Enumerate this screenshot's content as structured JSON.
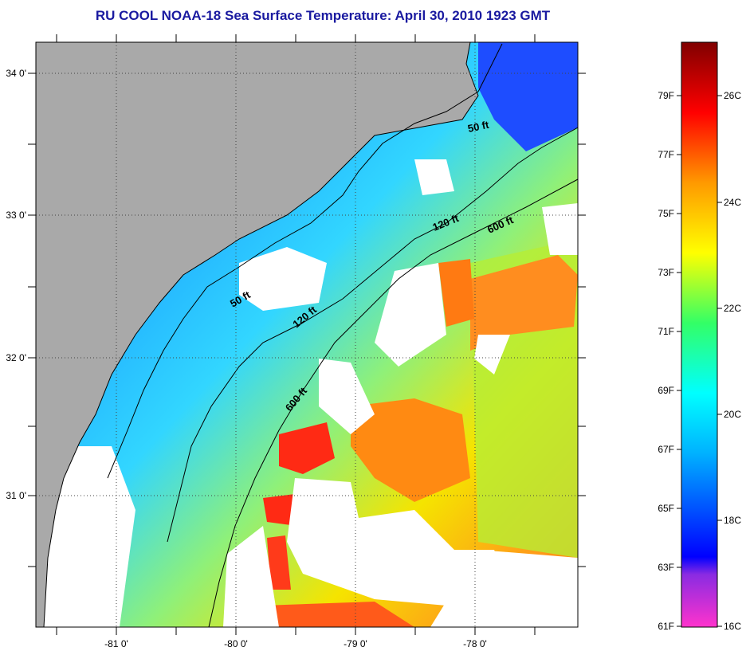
{
  "title": "RU COOL  NOAA-18  Sea Surface Temperature:  April 30, 2010 1923 GMT",
  "axes": {
    "lon_labels": [
      "-81 0'",
      "-80 0'",
      "-79 0'",
      "-78 0'"
    ],
    "lat_labels": [
      "34 0'",
      "33 0'",
      "32 0'",
      "31 0'"
    ]
  },
  "contours": {
    "label_50_north": "50 ft",
    "label_50_south": "50 ft",
    "label_120_north": "120 ft",
    "label_120_south": "120 ft",
    "label_600_north": "600 ft",
    "label_600_south": "600 ft"
  },
  "colorbar": {
    "fahrenheit_labels": [
      "79F",
      "77F",
      "75F",
      "73F",
      "71F",
      "69F",
      "67F",
      "65F",
      "63F",
      "61F"
    ],
    "celsius_labels": [
      "26C",
      "24C",
      "22C",
      "20C",
      "18C",
      "16C"
    ],
    "colors": [
      "#ff33cc",
      "#8a2be2",
      "#0000ff",
      "#00b4ff",
      "#00ffff",
      "#33ff66",
      "#ffff00",
      "#ff9900",
      "#ff0000",
      "#800000"
    ]
  },
  "colors": {
    "land": "#a9a9a9",
    "cloud": "#ffffff",
    "title": "#1a1aa0"
  }
}
